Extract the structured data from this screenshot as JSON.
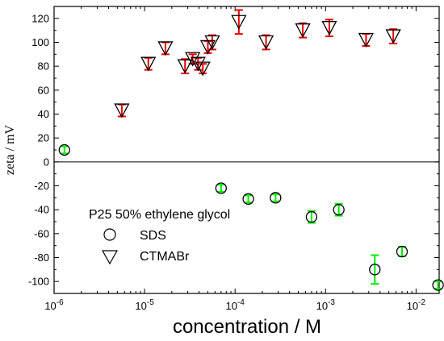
{
  "chart_data": {
    "type": "scatter",
    "xscale": "log",
    "xlim": [
      1e-06,
      0.018
    ],
    "ylim": [
      -110,
      130
    ],
    "xlabel": "concentration / M",
    "ylabel": "zeta / mV",
    "x_ticks": [
      1e-06,
      1e-05,
      0.0001,
      0.001,
      0.01
    ],
    "x_tick_labels": [
      {
        "base": "10",
        "exp": "-6"
      },
      {
        "base": "10",
        "exp": "-5"
      },
      {
        "base": "10",
        "exp": "-4"
      },
      {
        "base": "10",
        "exp": "-3"
      },
      {
        "base": "10",
        "exp": "-2"
      }
    ],
    "y_ticks": [
      -100,
      -80,
      -60,
      -40,
      -20,
      0,
      20,
      40,
      60,
      80,
      100,
      120
    ],
    "y_tick_labels": [
      "-100",
      "-80",
      "-60",
      "-40",
      "-20",
      "0",
      "20",
      "40",
      "60",
      "80",
      "100",
      "120"
    ],
    "zero_line": true,
    "legend": {
      "title": "P25 50% ethylene glycol",
      "entries": [
        "SDS",
        "CTMABr"
      ],
      "position": "lower-left"
    },
    "colors": {
      "sds_error": "#00ee00",
      "ctmabr_error": "#ee0000",
      "marker": "#000000"
    },
    "series": [
      {
        "name": "SDS",
        "marker": "circle",
        "points": [
          {
            "x": 1.3e-06,
            "y": 10,
            "err": 3
          },
          {
            "x": 7e-05,
            "y": -22,
            "err": 3
          },
          {
            "x": 0.00014,
            "y": -31,
            "err": 3
          },
          {
            "x": 0.00028,
            "y": -30,
            "err": 3
          },
          {
            "x": 0.0007,
            "y": -46,
            "err": 5
          },
          {
            "x": 0.0014,
            "y": -40,
            "err": 5
          },
          {
            "x": 0.0035,
            "y": -90,
            "err": 12
          },
          {
            "x": 0.007,
            "y": -75,
            "err": 4
          },
          {
            "x": 0.0175,
            "y": -103,
            "err": 3
          }
        ]
      },
      {
        "name": "CTMABr",
        "marker": "triangle-down",
        "points": [
          {
            "x": 5.6e-06,
            "y": 43,
            "err": 5
          },
          {
            "x": 1.1e-05,
            "y": 82,
            "err": 5
          },
          {
            "x": 1.7e-05,
            "y": 95,
            "err": 5
          },
          {
            "x": 2.8e-05,
            "y": 80,
            "err": 6
          },
          {
            "x": 3.4e-05,
            "y": 86,
            "err": 4
          },
          {
            "x": 3.9e-05,
            "y": 82,
            "err": 5
          },
          {
            "x": 4.4e-05,
            "y": 78,
            "err": 4
          },
          {
            "x": 5e-05,
            "y": 96,
            "err": 5
          },
          {
            "x": 5.6e-05,
            "y": 100,
            "err": 6
          },
          {
            "x": 0.00011,
            "y": 117,
            "err": 10
          },
          {
            "x": 0.00022,
            "y": 100,
            "err": 6
          },
          {
            "x": 0.00056,
            "y": 110,
            "err": 6
          },
          {
            "x": 0.0011,
            "y": 112,
            "err": 7
          },
          {
            "x": 0.0028,
            "y": 102,
            "err": 5
          },
          {
            "x": 0.0056,
            "y": 105,
            "err": 6
          }
        ]
      }
    ]
  }
}
